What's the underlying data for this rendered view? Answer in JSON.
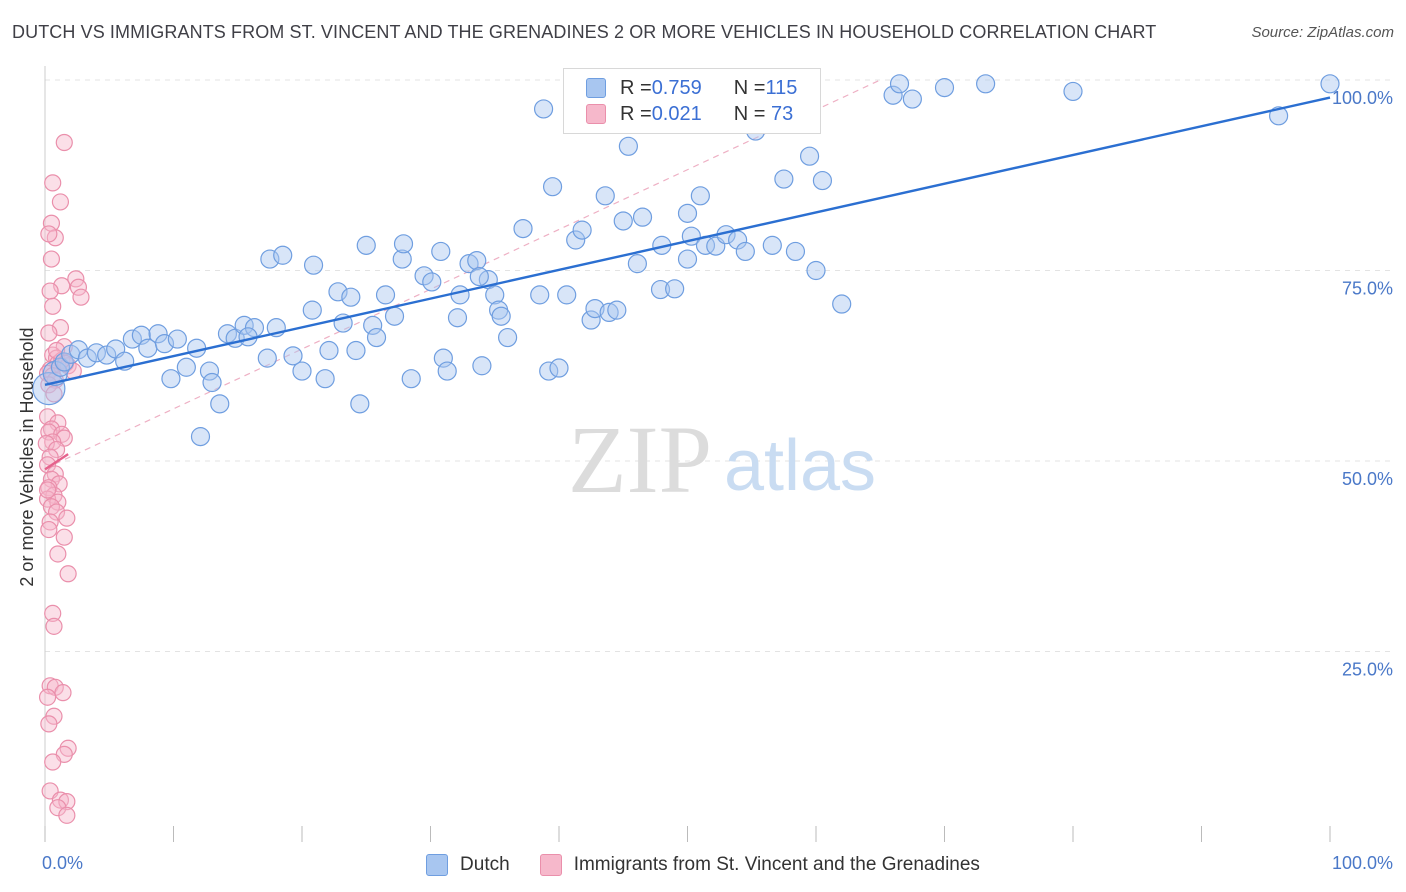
{
  "title": "DUTCH VS IMMIGRANTS FROM ST. VINCENT AND THE GRENADINES 2 OR MORE VEHICLES IN HOUSEHOLD CORRELATION CHART",
  "source": "Source: ZipAtlas.com",
  "watermark": {
    "zip": "ZIP",
    "atlas": "atlas"
  },
  "colors": {
    "dutch_fill": "#a8c6f0",
    "dutch_stroke": "#6f9ee0",
    "dutch_line": "#2b6fd1",
    "svg_fill": "#f6b8cb",
    "svg_stroke": "#ea8fab",
    "svg_line": "#e5628c",
    "tick_text": "#4a78c8",
    "grid": "#e3e3e3"
  },
  "legend_top": [
    {
      "r_label": "R = ",
      "r_value": "0.759",
      "n_label": "N = ",
      "n_value": "115"
    },
    {
      "r_label": "R = ",
      "r_value": "0.021",
      "n_label": "N = ",
      "n_value": " 73"
    }
  ],
  "legend_bottom": [
    "Dutch",
    "Immigrants from St. Vincent and the Grenadines"
  ],
  "chart_data": {
    "type": "scatter",
    "title": "DUTCH VS IMMIGRANTS FROM ST. VINCENT AND THE GRENADINES 2 OR MORE VEHICLES IN HOUSEHOLD CORRELATION CHART",
    "xlabel": "",
    "ylabel": "2 or more Vehicles in Household",
    "xlim": [
      0,
      100
    ],
    "ylim": [
      0,
      100
    ],
    "x_tick_labels": [
      "0.0%",
      "100.0%"
    ],
    "y_tick_labels": [
      "100.0%",
      "75.0%",
      "50.0%",
      "25.0%"
    ],
    "y_ticks": [
      100,
      75,
      50,
      25
    ],
    "grid": true,
    "legend_position": "top-center",
    "series": [
      {
        "name": "Dutch",
        "R": 0.759,
        "N": 115,
        "trend": {
          "x": [
            0,
            100
          ],
          "y": [
            60.0,
            97.7
          ]
        },
        "points": [
          [
            0.3,
            59.5
          ],
          [
            0.8,
            61.5
          ],
          [
            1.2,
            62.3
          ],
          [
            1.5,
            63.0
          ],
          [
            2.0,
            64.0
          ],
          [
            2.6,
            64.6
          ],
          [
            3.3,
            63.5
          ],
          [
            4.0,
            64.2
          ],
          [
            4.8,
            63.9
          ],
          [
            5.5,
            64.7
          ],
          [
            6.2,
            63.1
          ],
          [
            6.8,
            66.0
          ],
          [
            7.5,
            66.5
          ],
          [
            8.0,
            64.8
          ],
          [
            8.8,
            66.7
          ],
          [
            9.3,
            65.4
          ],
          [
            10.3,
            66.0
          ],
          [
            9.8,
            60.8
          ],
          [
            11.0,
            62.3
          ],
          [
            11.8,
            64.8
          ],
          [
            12.8,
            61.8
          ],
          [
            13.0,
            60.3
          ],
          [
            13.6,
            57.5
          ],
          [
            12.1,
            53.2
          ],
          [
            14.2,
            66.7
          ],
          [
            14.8,
            66.1
          ],
          [
            15.5,
            67.8
          ],
          [
            16.3,
            67.5
          ],
          [
            17.3,
            63.5
          ],
          [
            18.0,
            67.5
          ],
          [
            17.5,
            76.5
          ],
          [
            18.5,
            77.0
          ],
          [
            19.3,
            63.8
          ],
          [
            20.0,
            61.8
          ],
          [
            20.8,
            69.8
          ],
          [
            20.9,
            75.7
          ],
          [
            21.8,
            60.8
          ],
          [
            22.1,
            64.5
          ],
          [
            22.8,
            72.2
          ],
          [
            23.2,
            68.1
          ],
          [
            23.8,
            71.5
          ],
          [
            24.2,
            64.5
          ],
          [
            24.5,
            57.5
          ],
          [
            25.0,
            78.3
          ],
          [
            25.5,
            67.8
          ],
          [
            25.8,
            66.2
          ],
          [
            26.5,
            71.8
          ],
          [
            27.2,
            69.0
          ],
          [
            27.8,
            76.5
          ],
          [
            27.9,
            78.5
          ],
          [
            28.5,
            60.8
          ],
          [
            29.5,
            74.3
          ],
          [
            30.1,
            73.5
          ],
          [
            30.8,
            77.5
          ],
          [
            31.0,
            63.5
          ],
          [
            31.3,
            61.8
          ],
          [
            32.1,
            68.8
          ],
          [
            32.3,
            71.8
          ],
          [
            33.0,
            75.9
          ],
          [
            33.6,
            76.3
          ],
          [
            34.0,
            62.5
          ],
          [
            34.5,
            73.8
          ],
          [
            35.0,
            71.8
          ],
          [
            35.3,
            69.8
          ],
          [
            35.5,
            69.0
          ],
          [
            36.0,
            66.2
          ],
          [
            37.2,
            80.5
          ],
          [
            38.5,
            71.8
          ],
          [
            38.8,
            96.2
          ],
          [
            39.2,
            61.8
          ],
          [
            39.5,
            86.0
          ],
          [
            40.0,
            62.2
          ],
          [
            40.6,
            71.8
          ],
          [
            41.3,
            79.0
          ],
          [
            41.8,
            80.3
          ],
          [
            42.5,
            68.5
          ],
          [
            42.8,
            70.0
          ],
          [
            43.6,
            84.8
          ],
          [
            43.9,
            69.5
          ],
          [
            44.5,
            69.8
          ],
          [
            45.0,
            81.5
          ],
          [
            45.4,
            91.3
          ],
          [
            46.1,
            75.9
          ],
          [
            46.5,
            82.0
          ],
          [
            47.9,
            72.5
          ],
          [
            48.0,
            78.3
          ],
          [
            49.0,
            72.6
          ],
          [
            50.0,
            76.5
          ],
          [
            50.0,
            82.5
          ],
          [
            50.3,
            79.5
          ],
          [
            51.0,
            84.8
          ],
          [
            51.4,
            78.3
          ],
          [
            52.2,
            78.2
          ],
          [
            53.0,
            79.7
          ],
          [
            53.9,
            79.0
          ],
          [
            54.5,
            77.5
          ],
          [
            55.3,
            93.3
          ],
          [
            56.6,
            78.3
          ],
          [
            57.5,
            87.0
          ],
          [
            58.4,
            77.5
          ],
          [
            58.9,
            95.3
          ],
          [
            59.5,
            90.0
          ],
          [
            60.0,
            75.0
          ],
          [
            60.5,
            86.8
          ],
          [
            62.0,
            70.6
          ],
          [
            66.0,
            98.0
          ],
          [
            66.5,
            99.5
          ],
          [
            67.5,
            97.5
          ],
          [
            73.2,
            99.5
          ],
          [
            80.0,
            98.5
          ],
          [
            96.0,
            95.3
          ],
          [
            100.0,
            99.5
          ],
          [
            70.0,
            99.0
          ],
          [
            33.8,
            74.2
          ],
          [
            15.8,
            66.3
          ]
        ]
      },
      {
        "name": "Immigrants from St. Vincent and the Grenadines",
        "R": 0.021,
        "N": 73,
        "trend": {
          "x": [
            0,
            1.8
          ],
          "y": [
            48.9,
            50.9
          ]
        },
        "points": [
          [
            1.5,
            91.8
          ],
          [
            0.6,
            86.5
          ],
          [
            1.2,
            84.0
          ],
          [
            0.5,
            81.2
          ],
          [
            0.8,
            79.3
          ],
          [
            0.3,
            79.8
          ],
          [
            0.5,
            76.5
          ],
          [
            1.3,
            73.0
          ],
          [
            2.4,
            73.9
          ],
          [
            2.6,
            72.8
          ],
          [
            0.4,
            72.3
          ],
          [
            2.8,
            71.5
          ],
          [
            0.6,
            70.3
          ],
          [
            1.2,
            67.5
          ],
          [
            0.3,
            66.8
          ],
          [
            1.5,
            65.0
          ],
          [
            0.6,
            63.9
          ],
          [
            0.9,
            63.5
          ],
          [
            1.0,
            62.8
          ],
          [
            1.3,
            63.2
          ],
          [
            1.8,
            62.5
          ],
          [
            0.4,
            62.0
          ],
          [
            0.2,
            61.5
          ],
          [
            0.6,
            61.2
          ],
          [
            0.8,
            60.6
          ],
          [
            0.3,
            60.0
          ],
          [
            0.7,
            58.8
          ],
          [
            0.2,
            55.8
          ],
          [
            1.0,
            55.0
          ],
          [
            0.5,
            54.2
          ],
          [
            0.3,
            53.8
          ],
          [
            1.3,
            53.5
          ],
          [
            1.5,
            53.0
          ],
          [
            0.6,
            52.5
          ],
          [
            0.1,
            52.3
          ],
          [
            0.9,
            51.5
          ],
          [
            0.4,
            50.5
          ],
          [
            0.2,
            49.5
          ],
          [
            0.8,
            48.3
          ],
          [
            0.5,
            47.6
          ],
          [
            1.1,
            47.0
          ],
          [
            0.3,
            46.5
          ],
          [
            0.7,
            45.5
          ],
          [
            0.2,
            45.0
          ],
          [
            1.0,
            44.6
          ],
          [
            0.5,
            44.0
          ],
          [
            0.9,
            43.3
          ],
          [
            1.7,
            42.5
          ],
          [
            0.4,
            42.0
          ],
          [
            0.3,
            41.0
          ],
          [
            1.5,
            40.0
          ],
          [
            1.0,
            37.8
          ],
          [
            1.8,
            35.2
          ],
          [
            0.6,
            30.0
          ],
          [
            0.7,
            28.3
          ],
          [
            0.4,
            20.5
          ],
          [
            0.8,
            20.3
          ],
          [
            1.4,
            19.6
          ],
          [
            0.2,
            19.0
          ],
          [
            0.7,
            16.5
          ],
          [
            0.3,
            15.5
          ],
          [
            1.8,
            12.3
          ],
          [
            1.5,
            11.5
          ],
          [
            0.6,
            10.5
          ],
          [
            0.4,
            6.7
          ],
          [
            1.2,
            5.5
          ],
          [
            1.7,
            5.3
          ],
          [
            1.0,
            4.5
          ],
          [
            1.7,
            3.5
          ],
          [
            0.9,
            64.5
          ],
          [
            1.6,
            62.8
          ],
          [
            0.2,
            46.2
          ],
          [
            2.2,
            61.8
          ]
        ]
      }
    ]
  }
}
